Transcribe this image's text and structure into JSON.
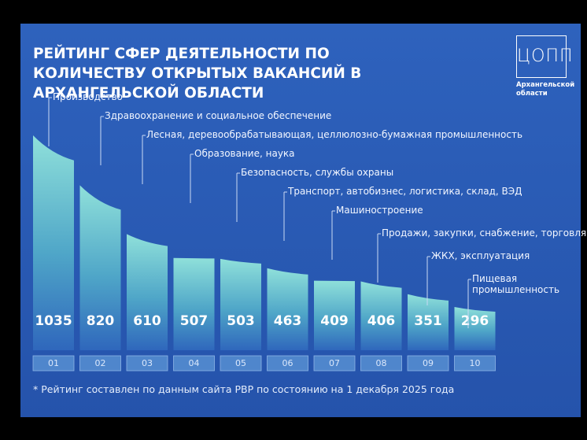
{
  "chart_data": {
    "type": "bar",
    "title": "РЕЙТИНГ СФЕР ДЕЯТЕЛЬНОСТИ ПО КОЛИЧЕСТВУ ОТКРЫТЫХ ВАКАНСИЙ В АРХАНГЕЛЬСКОЙ ОБЛАСТИ",
    "categories": [
      "Производство",
      "Здравоохранение и социальное обеспечение",
      "Лесная, деревообрабатывающая, целлюлозно-бумажная промышленность",
      "Образование, наука",
      "Безопасность, службы охраны",
      "Транспорт, автобизнес, логистика, склад, ВЭД",
      "Машиностроение",
      "Продажи, закупки, снабжение, торговля",
      "ЖКХ, эксплуатация",
      "Пищевая промышленность"
    ],
    "values": [
      1035,
      820,
      610,
      507,
      503,
      463,
      409,
      406,
      351,
      296
    ],
    "ranks": [
      "01",
      "02",
      "03",
      "04",
      "05",
      "06",
      "07",
      "08",
      "09",
      "10"
    ],
    "footnote": "* Рейтинг составлен по данным сайта РВР по состоянию на 1 декабря 2025 года",
    "logo": {
      "mark": "ЦОПП",
      "caption": "Архангельской области"
    }
  }
}
